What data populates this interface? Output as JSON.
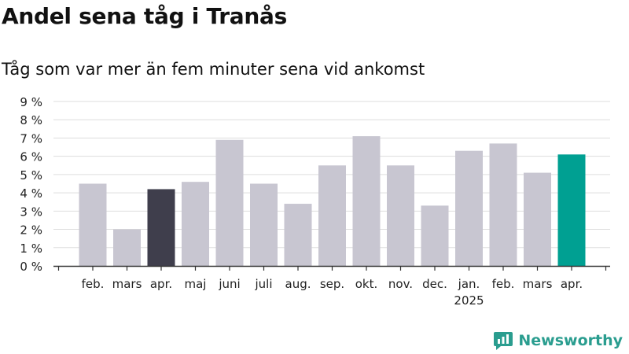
{
  "title": "Andel sena tåg i Tranås",
  "subtitle": "Tåg som var mer än fem minuter sena vid ankomst",
  "brand": "Newsworthy",
  "colors": {
    "default": "#c8c6d1",
    "highlight_dark": "#3f3e4c",
    "highlight_accent": "#00a092",
    "grid": "#dddddd",
    "axis": "#333333",
    "brand": "#2a9d8f"
  },
  "chart_data": {
    "type": "bar",
    "categories": [
      "",
      "feb.",
      "mars",
      "apr.",
      "maj",
      "juni",
      "juli",
      "aug.",
      "sep.",
      "okt.",
      "nov.",
      "dec.",
      "jan.",
      "feb.",
      "mars",
      "apr.",
      ""
    ],
    "year_labels": {
      "12": "2025"
    },
    "values": [
      null,
      4.5,
      2.0,
      4.2,
      4.6,
      6.9,
      4.5,
      3.4,
      5.5,
      7.1,
      5.5,
      3.3,
      6.3,
      6.7,
      5.1,
      6.1,
      null
    ],
    "highlight": {
      "3": "highlight_dark",
      "15": "highlight_accent"
    },
    "yticks": [
      "0 %",
      "1 %",
      "2 %",
      "3 %",
      "4 %",
      "5 %",
      "6 %",
      "7 %",
      "8 %",
      "9 %"
    ],
    "ylim": [
      0,
      9
    ],
    "grid": true,
    "legend": "none"
  }
}
